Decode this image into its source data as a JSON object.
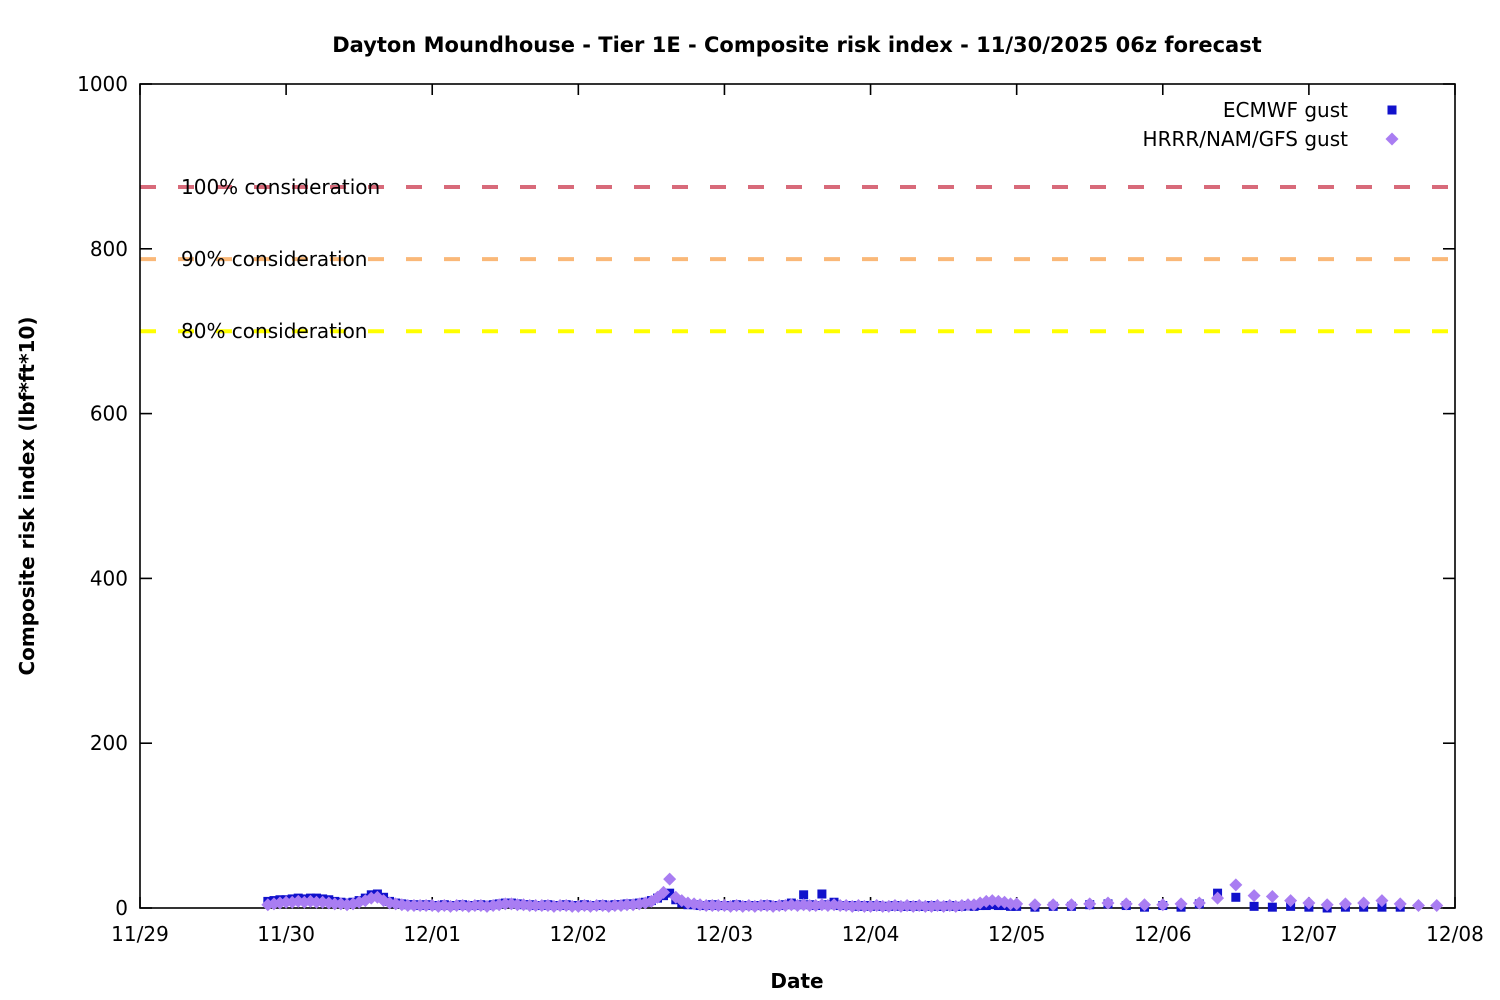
{
  "chart_data": {
    "type": "scatter",
    "title": "Dayton Moundhouse - Tier 1E - Composite risk index - 11/30/2025 06z forecast",
    "xlabel": "Date",
    "ylabel": "Composite risk index (lbf*ft*10)",
    "x_unit": "days since 11/29 00:00",
    "x_tick_labels": [
      "11/29",
      "11/30",
      "12/01",
      "12/02",
      "12/03",
      "12/04",
      "12/05",
      "12/06",
      "12/07",
      "12/08"
    ],
    "x_tick_days": [
      0,
      1,
      2,
      3,
      4,
      5,
      6,
      7,
      8,
      9
    ],
    "y_ticks": [
      0,
      200,
      400,
      600,
      800,
      1000
    ],
    "ylim": [
      0,
      1000
    ],
    "xlim_days": [
      0,
      9
    ],
    "grid": false,
    "legend_position": "top-right",
    "reference_lines": [
      {
        "label": "100% consideration",
        "value": 875,
        "color": "#d86a7a"
      },
      {
        "label": "90% consideration",
        "value": 787.5,
        "color": "#fab878"
      },
      {
        "label": "80% consideration",
        "value": 700,
        "color": "#ffff00"
      }
    ],
    "series": [
      {
        "name": "ECMWF gust",
        "marker": "square",
        "color": "#1111cc",
        "points": [
          [
            0.875,
            8
          ],
          [
            0.917,
            9
          ],
          [
            0.958,
            10
          ],
          [
            1.0,
            10
          ],
          [
            1.042,
            11
          ],
          [
            1.083,
            12
          ],
          [
            1.125,
            11
          ],
          [
            1.167,
            12
          ],
          [
            1.208,
            12
          ],
          [
            1.25,
            11
          ],
          [
            1.292,
            10
          ],
          [
            1.333,
            8
          ],
          [
            1.375,
            7
          ],
          [
            1.417,
            6
          ],
          [
            1.458,
            7
          ],
          [
            1.5,
            9
          ],
          [
            1.542,
            12
          ],
          [
            1.583,
            16
          ],
          [
            1.625,
            17
          ],
          [
            1.667,
            13
          ],
          [
            1.708,
            8
          ],
          [
            1.75,
            6
          ],
          [
            1.792,
            5
          ],
          [
            1.833,
            4
          ],
          [
            1.875,
            4
          ],
          [
            1.917,
            3
          ],
          [
            1.958,
            4
          ],
          [
            2.0,
            3
          ],
          [
            2.042,
            3
          ],
          [
            2.083,
            4
          ],
          [
            2.125,
            3
          ],
          [
            2.167,
            3
          ],
          [
            2.208,
            4
          ],
          [
            2.25,
            3
          ],
          [
            2.292,
            3
          ],
          [
            2.333,
            4
          ],
          [
            2.375,
            3
          ],
          [
            2.417,
            4
          ],
          [
            2.458,
            5
          ],
          [
            2.5,
            6
          ],
          [
            2.542,
            6
          ],
          [
            2.583,
            5
          ],
          [
            2.625,
            4
          ],
          [
            2.667,
            4
          ],
          [
            2.708,
            3
          ],
          [
            2.75,
            3
          ],
          [
            2.792,
            4
          ],
          [
            2.833,
            3
          ],
          [
            2.875,
            3
          ],
          [
            2.917,
            4
          ],
          [
            2.958,
            3
          ],
          [
            3.0,
            3
          ],
          [
            3.042,
            4
          ],
          [
            3.083,
            3
          ],
          [
            3.125,
            3
          ],
          [
            3.167,
            4
          ],
          [
            3.208,
            3
          ],
          [
            3.25,
            4
          ],
          [
            3.292,
            4
          ],
          [
            3.333,
            5
          ],
          [
            3.375,
            5
          ],
          [
            3.417,
            6
          ],
          [
            3.458,
            7
          ],
          [
            3.5,
            9
          ],
          [
            3.542,
            12
          ],
          [
            3.583,
            15
          ],
          [
            3.625,
            18
          ],
          [
            3.667,
            10
          ],
          [
            3.708,
            6
          ],
          [
            3.75,
            4
          ],
          [
            3.792,
            4
          ],
          [
            3.833,
            3
          ],
          [
            3.875,
            3
          ],
          [
            3.917,
            4
          ],
          [
            3.958,
            3
          ],
          [
            4.0,
            3
          ],
          [
            4.042,
            3
          ],
          [
            4.083,
            4
          ],
          [
            4.125,
            3
          ],
          [
            4.167,
            3
          ],
          [
            4.208,
            3
          ],
          [
            4.25,
            3
          ],
          [
            4.292,
            4
          ],
          [
            4.333,
            3
          ],
          [
            4.375,
            3
          ],
          [
            4.417,
            4
          ],
          [
            4.458,
            6
          ],
          [
            4.5,
            4
          ],
          [
            4.542,
            16
          ],
          [
            4.583,
            4
          ],
          [
            4.625,
            3
          ],
          [
            4.667,
            17
          ],
          [
            4.708,
            4
          ],
          [
            4.75,
            7
          ],
          [
            4.792,
            3
          ],
          [
            4.833,
            3
          ],
          [
            4.875,
            3
          ],
          [
            4.917,
            2
          ],
          [
            4.958,
            3
          ],
          [
            5.0,
            2
          ],
          [
            5.042,
            3
          ],
          [
            5.083,
            2
          ],
          [
            5.125,
            2
          ],
          [
            5.167,
            3
          ],
          [
            5.208,
            2
          ],
          [
            5.25,
            2
          ],
          [
            5.292,
            3
          ],
          [
            5.333,
            2
          ],
          [
            5.375,
            2
          ],
          [
            5.417,
            3
          ],
          [
            5.458,
            2
          ],
          [
            5.5,
            2
          ],
          [
            5.542,
            3
          ],
          [
            5.583,
            2
          ],
          [
            5.625,
            2
          ],
          [
            5.667,
            3
          ],
          [
            5.708,
            2
          ],
          [
            5.75,
            3
          ],
          [
            5.792,
            3
          ],
          [
            5.833,
            4
          ],
          [
            5.875,
            3
          ],
          [
            5.917,
            3
          ],
          [
            5.958,
            2
          ],
          [
            6.0,
            2
          ],
          [
            6.125,
            1
          ],
          [
            6.25,
            2
          ],
          [
            6.375,
            2
          ],
          [
            6.5,
            4
          ],
          [
            6.625,
            5
          ],
          [
            6.75,
            3
          ],
          [
            6.875,
            1
          ],
          [
            7.0,
            3
          ],
          [
            7.125,
            1
          ],
          [
            7.25,
            5
          ],
          [
            7.375,
            18
          ],
          [
            7.5,
            13
          ],
          [
            7.625,
            2
          ],
          [
            7.75,
            1
          ],
          [
            7.875,
            2
          ],
          [
            8.0,
            1
          ],
          [
            8.125,
            0
          ],
          [
            8.25,
            1
          ],
          [
            8.375,
            1
          ],
          [
            8.5,
            1
          ],
          [
            8.625,
            1
          ]
        ]
      },
      {
        "name": "HRRR/NAM/GFS gust",
        "marker": "diamond",
        "color": "#a97df2",
        "points": [
          [
            0.875,
            4
          ],
          [
            0.917,
            5
          ],
          [
            0.958,
            6
          ],
          [
            1.0,
            7
          ],
          [
            1.042,
            7
          ],
          [
            1.083,
            8
          ],
          [
            1.125,
            7
          ],
          [
            1.167,
            8
          ],
          [
            1.208,
            7
          ],
          [
            1.25,
            7
          ],
          [
            1.292,
            6
          ],
          [
            1.333,
            5
          ],
          [
            1.375,
            5
          ],
          [
            1.417,
            4
          ],
          [
            1.458,
            5
          ],
          [
            1.5,
            7
          ],
          [
            1.542,
            9
          ],
          [
            1.583,
            12
          ],
          [
            1.625,
            13
          ],
          [
            1.667,
            9
          ],
          [
            1.708,
            6
          ],
          [
            1.75,
            5
          ],
          [
            1.792,
            4
          ],
          [
            1.833,
            3
          ],
          [
            1.875,
            3
          ],
          [
            1.917,
            3
          ],
          [
            1.958,
            3
          ],
          [
            2.0,
            3
          ],
          [
            2.042,
            2
          ],
          [
            2.083,
            3
          ],
          [
            2.125,
            2
          ],
          [
            2.167,
            3
          ],
          [
            2.208,
            3
          ],
          [
            2.25,
            2
          ],
          [
            2.292,
            3
          ],
          [
            2.333,
            3
          ],
          [
            2.375,
            2
          ],
          [
            2.417,
            3
          ],
          [
            2.458,
            4
          ],
          [
            2.5,
            5
          ],
          [
            2.542,
            5
          ],
          [
            2.583,
            4
          ],
          [
            2.625,
            4
          ],
          [
            2.667,
            3
          ],
          [
            2.708,
            3
          ],
          [
            2.75,
            3
          ],
          [
            2.792,
            3
          ],
          [
            2.833,
            2
          ],
          [
            2.875,
            3
          ],
          [
            2.917,
            3
          ],
          [
            2.958,
            2
          ],
          [
            3.0,
            2
          ],
          [
            3.042,
            3
          ],
          [
            3.083,
            2
          ],
          [
            3.125,
            3
          ],
          [
            3.167,
            3
          ],
          [
            3.208,
            2
          ],
          [
            3.25,
            3
          ],
          [
            3.292,
            3
          ],
          [
            3.333,
            4
          ],
          [
            3.375,
            4
          ],
          [
            3.417,
            5
          ],
          [
            3.458,
            6
          ],
          [
            3.5,
            8
          ],
          [
            3.542,
            13
          ],
          [
            3.583,
            19
          ],
          [
            3.625,
            35
          ],
          [
            3.667,
            13
          ],
          [
            3.708,
            9
          ],
          [
            3.75,
            6
          ],
          [
            3.792,
            5
          ],
          [
            3.833,
            4
          ],
          [
            3.875,
            3
          ],
          [
            3.917,
            3
          ],
          [
            3.958,
            3
          ],
          [
            4.0,
            3
          ],
          [
            4.042,
            2
          ],
          [
            4.083,
            3
          ],
          [
            4.125,
            2
          ],
          [
            4.167,
            3
          ],
          [
            4.208,
            2
          ],
          [
            4.25,
            3
          ],
          [
            4.292,
            3
          ],
          [
            4.333,
            2
          ],
          [
            4.375,
            3
          ],
          [
            4.417,
            3
          ],
          [
            4.458,
            4
          ],
          [
            4.5,
            3
          ],
          [
            4.542,
            4
          ],
          [
            4.583,
            3
          ],
          [
            4.625,
            3
          ],
          [
            4.667,
            4
          ],
          [
            4.708,
            3
          ],
          [
            4.75,
            4
          ],
          [
            4.792,
            3
          ],
          [
            4.833,
            3
          ],
          [
            4.875,
            2
          ],
          [
            4.917,
            3
          ],
          [
            4.958,
            2
          ],
          [
            5.0,
            2
          ],
          [
            5.042,
            3
          ],
          [
            5.083,
            2
          ],
          [
            5.125,
            2
          ],
          [
            5.167,
            3
          ],
          [
            5.208,
            2
          ],
          [
            5.25,
            3
          ],
          [
            5.292,
            2
          ],
          [
            5.333,
            3
          ],
          [
            5.375,
            2
          ],
          [
            5.417,
            2
          ],
          [
            5.458,
            3
          ],
          [
            5.5,
            2
          ],
          [
            5.542,
            3
          ],
          [
            5.583,
            2
          ],
          [
            5.625,
            3
          ],
          [
            5.667,
            4
          ],
          [
            5.708,
            4
          ],
          [
            5.75,
            6
          ],
          [
            5.792,
            8
          ],
          [
            5.833,
            9
          ],
          [
            5.875,
            8
          ],
          [
            5.917,
            7
          ],
          [
            5.958,
            5
          ],
          [
            6.0,
            5
          ],
          [
            6.125,
            4
          ],
          [
            6.25,
            4
          ],
          [
            6.375,
            4
          ],
          [
            6.5,
            5
          ],
          [
            6.625,
            6
          ],
          [
            6.75,
            5
          ],
          [
            6.875,
            4
          ],
          [
            7.0,
            4
          ],
          [
            7.125,
            5
          ],
          [
            7.25,
            6
          ],
          [
            7.375,
            12
          ],
          [
            7.5,
            28
          ],
          [
            7.625,
            15
          ],
          [
            7.75,
            14
          ],
          [
            7.875,
            9
          ],
          [
            8.0,
            6
          ],
          [
            8.125,
            4
          ],
          [
            8.25,
            5
          ],
          [
            8.375,
            6
          ],
          [
            8.5,
            9
          ],
          [
            8.625,
            5
          ],
          [
            8.75,
            3
          ],
          [
            8.875,
            3
          ]
        ]
      }
    ]
  }
}
